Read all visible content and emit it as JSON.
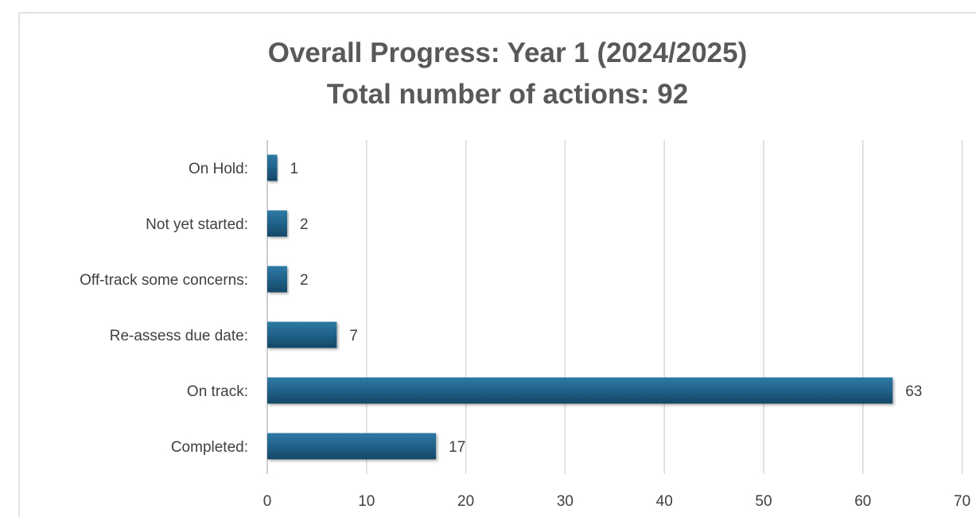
{
  "chart_data": {
    "type": "bar",
    "orientation": "horizontal",
    "title": "Overall Progress: Year 1 (2024/2025)",
    "subtitle": "Total number of actions: 92",
    "categories": [
      "Completed:",
      "On track:",
      "Re-assess due date:",
      "Off-track some concerns:",
      "Not yet started:",
      "On Hold:"
    ],
    "values": [
      17,
      63,
      7,
      2,
      2,
      1
    ],
    "xlim": [
      0,
      70
    ],
    "xticks": [
      "0",
      "10",
      "20",
      "30",
      "40",
      "50",
      "60",
      "70"
    ],
    "grid": true,
    "legend": "none",
    "bar_color": "#1f5f86",
    "bar_highlight": "#2d7aa5",
    "bar_shadow": "#154766"
  }
}
